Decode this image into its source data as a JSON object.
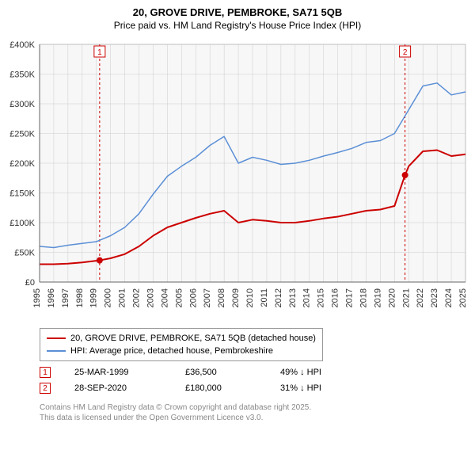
{
  "header": {
    "title": "20, GROVE DRIVE, PEMBROKE, SA71 5QB",
    "subtitle": "Price paid vs. HM Land Registry's House Price Index (HPI)"
  },
  "chart": {
    "type": "line",
    "plot_bg": "#f7f7f7",
    "page_bg": "#ffffff",
    "grid_color": "#cccccc",
    "axis_color": "#666666",
    "tick_fontsize": 11,
    "title_fontsize": 13,
    "x": {
      "years": [
        1995,
        1996,
        1997,
        1998,
        1999,
        2000,
        2001,
        2002,
        2003,
        2004,
        2005,
        2006,
        2007,
        2008,
        2009,
        2010,
        2011,
        2012,
        2013,
        2014,
        2015,
        2016,
        2017,
        2018,
        2019,
        2020,
        2021,
        2022,
        2023,
        2024,
        2025
      ]
    },
    "y": {
      "min": 0,
      "max": 400000,
      "step": 50000,
      "tick_labels": [
        "£0",
        "£50K",
        "£100K",
        "£150K",
        "£200K",
        "£250K",
        "£300K",
        "£350K",
        "£400K"
      ]
    },
    "series": [
      {
        "id": "price_paid",
        "label": "20, GROVE DRIVE, PEMBROKE, SA71 5QB (detached house)",
        "color": "#cc0000",
        "width": 2,
        "points": [
          [
            1995,
            30000
          ],
          [
            1996,
            30000
          ],
          [
            1997,
            31000
          ],
          [
            1998,
            33000
          ],
          [
            1999.23,
            36500
          ],
          [
            2000,
            40000
          ],
          [
            2001,
            47000
          ],
          [
            2002,
            60000
          ],
          [
            2003,
            78000
          ],
          [
            2004,
            92000
          ],
          [
            2005,
            100000
          ],
          [
            2006,
            108000
          ],
          [
            2007,
            115000
          ],
          [
            2008,
            120000
          ],
          [
            2009,
            100000
          ],
          [
            2010,
            105000
          ],
          [
            2011,
            103000
          ],
          [
            2012,
            100000
          ],
          [
            2013,
            100000
          ],
          [
            2014,
            103000
          ],
          [
            2015,
            107000
          ],
          [
            2016,
            110000
          ],
          [
            2017,
            115000
          ],
          [
            2018,
            120000
          ],
          [
            2019,
            122000
          ],
          [
            2020,
            128000
          ],
          [
            2020.74,
            180000
          ],
          [
            2021,
            195000
          ],
          [
            2022,
            220000
          ],
          [
            2023,
            222000
          ],
          [
            2024,
            212000
          ],
          [
            2025,
            215000
          ]
        ]
      },
      {
        "id": "hpi",
        "label": "HPI: Average price, detached house, Pembrokeshire",
        "color": "#5b8fd6",
        "width": 1.5,
        "points": [
          [
            1995,
            60000
          ],
          [
            1996,
            58000
          ],
          [
            1997,
            62000
          ],
          [
            1998,
            65000
          ],
          [
            1999,
            68000
          ],
          [
            2000,
            78000
          ],
          [
            2001,
            92000
          ],
          [
            2002,
            115000
          ],
          [
            2003,
            148000
          ],
          [
            2004,
            178000
          ],
          [
            2005,
            195000
          ],
          [
            2006,
            210000
          ],
          [
            2007,
            230000
          ],
          [
            2008,
            245000
          ],
          [
            2009,
            200000
          ],
          [
            2010,
            210000
          ],
          [
            2011,
            205000
          ],
          [
            2012,
            198000
          ],
          [
            2013,
            200000
          ],
          [
            2014,
            205000
          ],
          [
            2015,
            212000
          ],
          [
            2016,
            218000
          ],
          [
            2017,
            225000
          ],
          [
            2018,
            235000
          ],
          [
            2019,
            238000
          ],
          [
            2020,
            250000
          ],
          [
            2021,
            290000
          ],
          [
            2022,
            330000
          ],
          [
            2023,
            335000
          ],
          [
            2024,
            315000
          ],
          [
            2025,
            320000
          ]
        ]
      }
    ],
    "events": [
      {
        "n": "1",
        "year": 1999.23,
        "value": 36500,
        "color": "#cc0000"
      },
      {
        "n": "2",
        "year": 2020.74,
        "value": 180000,
        "color": "#cc0000"
      }
    ]
  },
  "legend": {
    "border_color": "#999999"
  },
  "event_rows": [
    {
      "n": "1",
      "color": "#cc0000",
      "date": "25-MAR-1999",
      "price": "£36,500",
      "pct": "49% ↓ HPI"
    },
    {
      "n": "2",
      "color": "#cc0000",
      "date": "28-SEP-2020",
      "price": "£180,000",
      "pct": "31% ↓ HPI"
    }
  ],
  "footer": {
    "line1": "Contains HM Land Registry data © Crown copyright and database right 2025.",
    "line2": "This data is licensed under the Open Government Licence v3.0."
  }
}
